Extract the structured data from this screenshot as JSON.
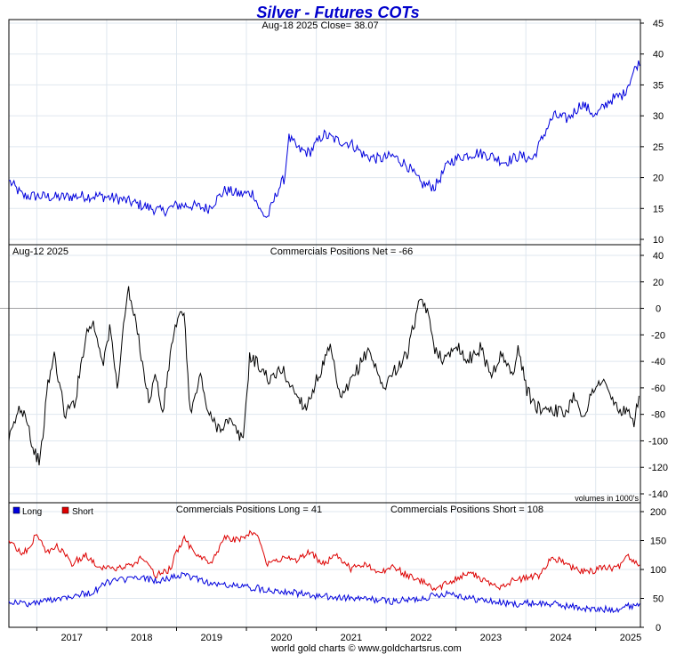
{
  "title": "Silver - Futures COTs",
  "footer": "world gold charts © www.goldchartsrus.com",
  "colors": {
    "title": "#0000cc",
    "price": "#0000dd",
    "net": "#000000",
    "long": "#0000dd",
    "short": "#dd0000",
    "grid": "#dfe7ef"
  },
  "chart_data": [
    {
      "type": "line",
      "name": "price-panel",
      "header": "Aug-18  2025   Close= 38.07",
      "ylim": [
        10,
        45
      ],
      "yticks": [
        10,
        15,
        20,
        25,
        30,
        35,
        40,
        45
      ],
      "grid": true,
      "series": [
        {
          "x": [
            2016.6,
            2016.8,
            2017.0,
            2017.3,
            2017.6,
            2017.9,
            2018.2,
            2018.5,
            2018.8,
            2019.0,
            2019.2,
            2019.45,
            2019.7,
            2019.9,
            2020.1,
            2020.2,
            2020.3,
            2020.45,
            2020.55,
            2020.6,
            2020.75,
            2020.9,
            2021.1,
            2021.3,
            2021.5,
            2021.7,
            2021.9,
            2022.1,
            2022.3,
            2022.5,
            2022.7,
            2022.9,
            2023.1,
            2023.3,
            2023.5,
            2023.7,
            2023.9,
            2024.1,
            2024.3,
            2024.4,
            2024.6,
            2024.8,
            2025.0,
            2025.2,
            2025.4,
            2025.6,
            2025.63
          ],
          "values": [
            19.5,
            17.0,
            17.0,
            16.8,
            17.0,
            17.0,
            16.5,
            15.5,
            14.5,
            15.5,
            15.5,
            15.0,
            18.0,
            17.3,
            17.5,
            14.5,
            13.5,
            18.0,
            20.0,
            26.5,
            24.5,
            24.0,
            27.0,
            26.0,
            25.5,
            23.5,
            23.0,
            23.5,
            22.0,
            19.0,
            18.5,
            22.5,
            23.5,
            24.0,
            23.5,
            22.5,
            23.5,
            23.0,
            28.0,
            30.0,
            29.5,
            32.0,
            30.0,
            32.5,
            33.5,
            38.5,
            38.07
          ]
        }
      ]
    },
    {
      "type": "line",
      "name": "net-panel",
      "date_label": "Aug-12  2025",
      "header": "Commercials Positions Net = -66",
      "note": "volumes in 1000's",
      "ylim": [
        -140,
        40
      ],
      "yticks": [
        -140,
        -120,
        -100,
        -80,
        -60,
        -40,
        -20,
        0,
        20,
        40
      ],
      "grid": true,
      "series": [
        {
          "x": [
            2016.6,
            2016.75,
            2016.85,
            2016.95,
            2017.05,
            2017.15,
            2017.25,
            2017.4,
            2017.55,
            2017.7,
            2017.8,
            2017.95,
            2018.05,
            2018.15,
            2018.3,
            2018.45,
            2018.6,
            2018.7,
            2018.8,
            2018.95,
            2019.1,
            2019.2,
            2019.35,
            2019.45,
            2019.6,
            2019.75,
            2019.95,
            2020.05,
            2020.2,
            2020.35,
            2020.5,
            2020.65,
            2020.85,
            2021.0,
            2021.2,
            2021.35,
            2021.55,
            2021.75,
            2021.95,
            2022.15,
            2022.3,
            2022.45,
            2022.55,
            2022.7,
            2022.85,
            2023.0,
            2023.15,
            2023.35,
            2023.5,
            2023.65,
            2023.8,
            2023.9,
            2024.0,
            2024.15,
            2024.35,
            2024.55,
            2024.7,
            2024.85,
            2024.95,
            2025.1,
            2025.3,
            2025.45,
            2025.55,
            2025.62
          ],
          "values": [
            -100,
            -75,
            -80,
            -108,
            -115,
            -60,
            -35,
            -80,
            -70,
            -20,
            -10,
            -40,
            -15,
            -60,
            15,
            -20,
            -70,
            -50,
            -80,
            -20,
            0,
            -80,
            -50,
            -80,
            -90,
            -85,
            -100,
            -35,
            -45,
            -55,
            -45,
            -60,
            -75,
            -55,
            -30,
            -70,
            -50,
            -30,
            -60,
            -45,
            -35,
            0,
            5,
            -30,
            -40,
            -25,
            -40,
            -30,
            -50,
            -35,
            -50,
            -30,
            -60,
            -75,
            -75,
            -80,
            -65,
            -85,
            -60,
            -55,
            -75,
            -80,
            -85,
            -66
          ]
        }
      ]
    },
    {
      "type": "line",
      "name": "positions-panel",
      "header_long": "Commercials Positions Long = 41",
      "header_short": "Commercials Positions Short = 108",
      "ylim": [
        0,
        200
      ],
      "yticks": [
        0,
        50,
        100,
        150,
        200
      ],
      "legend": "top-left",
      "grid": true,
      "series": [
        {
          "name": "Long",
          "x": [
            2016.6,
            2016.9,
            2017.2,
            2017.5,
            2017.8,
            2018.0,
            2018.2,
            2018.5,
            2018.8,
            2019.0,
            2019.3,
            2019.5,
            2019.8,
            2020.0,
            2020.3,
            2020.6,
            2020.9,
            2021.2,
            2021.5,
            2021.8,
            2022.1,
            2022.4,
            2022.7,
            2022.9,
            2023.2,
            2023.5,
            2023.8,
            2024.1,
            2024.4,
            2024.7,
            2025.0,
            2025.3,
            2025.63
          ],
          "values": [
            45,
            40,
            48,
            55,
            60,
            78,
            82,
            85,
            80,
            90,
            85,
            75,
            72,
            70,
            65,
            62,
            55,
            52,
            50,
            48,
            45,
            48,
            55,
            60,
            50,
            45,
            40,
            42,
            40,
            35,
            30,
            32,
            41
          ]
        },
        {
          "name": "Short",
          "x": [
            2016.6,
            2016.8,
            2017.0,
            2017.15,
            2017.3,
            2017.5,
            2017.7,
            2017.9,
            2018.1,
            2018.3,
            2018.5,
            2018.7,
            2018.9,
            2019.1,
            2019.3,
            2019.5,
            2019.7,
            2019.9,
            2020.0,
            2020.15,
            2020.3,
            2020.5,
            2020.7,
            2020.9,
            2021.1,
            2021.3,
            2021.5,
            2021.7,
            2021.9,
            2022.1,
            2022.3,
            2022.5,
            2022.7,
            2022.85,
            2023.0,
            2023.2,
            2023.4,
            2023.6,
            2023.8,
            2024.0,
            2024.2,
            2024.35,
            2024.5,
            2024.7,
            2024.9,
            2025.1,
            2025.3,
            2025.45,
            2025.63
          ],
          "values": [
            150,
            125,
            160,
            130,
            140,
            110,
            125,
            105,
            100,
            105,
            120,
            90,
            100,
            155,
            120,
            115,
            155,
            150,
            160,
            165,
            110,
            120,
            115,
            130,
            110,
            125,
            100,
            110,
            95,
            105,
            90,
            80,
            65,
            75,
            85,
            95,
            80,
            70,
            80,
            85,
            90,
            120,
            115,
            100,
            95,
            105,
            100,
            125,
            108
          ]
        }
      ]
    }
  ],
  "x_axis": {
    "range": [
      2016.6,
      2025.64
    ],
    "labels": [
      "2017",
      "2018",
      "2019",
      "2020",
      "2021",
      "2022",
      "2023",
      "2024",
      "2025"
    ],
    "gridlines": [
      2017,
      2018,
      2019,
      2020,
      2021,
      2022,
      2023,
      2024,
      2025
    ]
  }
}
